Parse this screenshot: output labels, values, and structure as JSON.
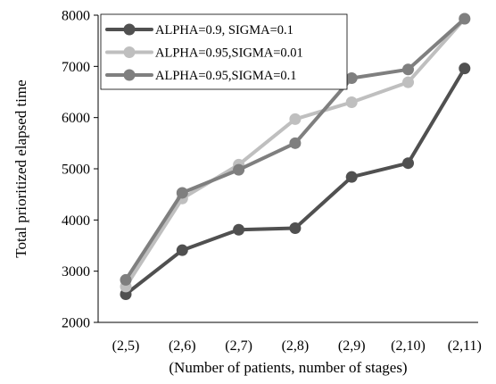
{
  "chart_data": {
    "type": "line",
    "title": "",
    "xlabel": "(Number of patients, number of stages)",
    "ylabel": "Total prioritized elapsed time",
    "categories": [
      "(2,5)",
      "(2,6)",
      "(2,7)",
      "(2,8)",
      "(2,9)",
      "(2,10)",
      "(2,11)"
    ],
    "ylim": [
      2000,
      8000
    ],
    "yticks": [
      2000,
      3000,
      4000,
      5000,
      6000,
      7000,
      8000
    ],
    "ytick_labels": [
      "2000",
      "3000",
      "4000",
      "5000",
      "6000",
      "7000",
      "8000"
    ],
    "grid": false,
    "legend_position": "top-left",
    "series": [
      {
        "name": "ALPHA=0.9, SIGMA=0.1",
        "color": "#505050",
        "values": [
          2550,
          3410,
          3810,
          3840,
          4840,
          5110,
          6960
        ]
      },
      {
        "name": "ALPHA=0.95,SIGMA=0.01",
        "color": "#bfbfbf",
        "values": [
          2700,
          4420,
          5080,
          5970,
          6300,
          6690,
          7930
        ]
      },
      {
        "name": "ALPHA=0.95,SIGMA=0.1",
        "color": "#7f7f7f",
        "values": [
          2830,
          4530,
          4980,
          5500,
          6770,
          6940,
          7930
        ]
      }
    ]
  }
}
